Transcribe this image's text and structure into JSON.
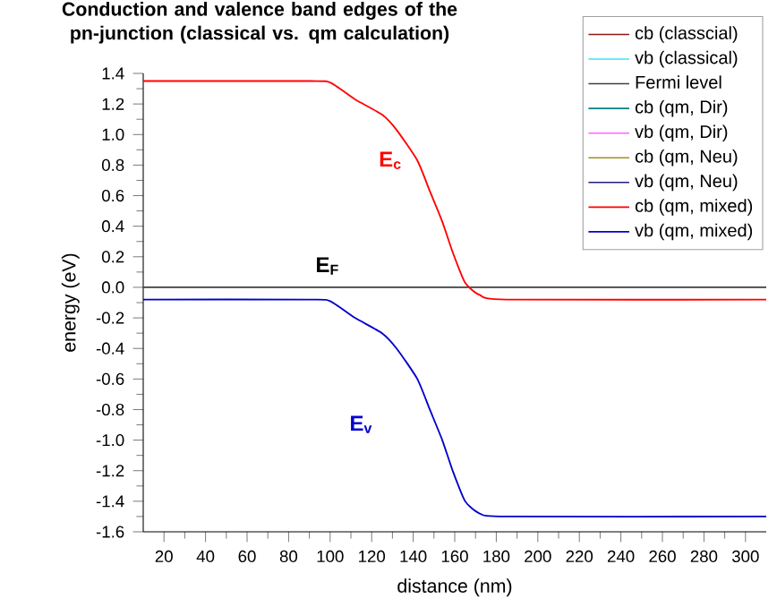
{
  "chart_data": {
    "type": "line",
    "title": "Conduction and valence band edges of the pn-junction (classical vs. qm calculation)",
    "xlabel": "distance (nm)",
    "ylabel": "energy (eV)",
    "x": [
      10,
      90,
      100,
      112,
      125,
      132,
      142,
      148,
      154,
      159,
      165,
      172,
      185,
      310
    ],
    "series": [
      {
        "name": "cb (classcial)",
        "color": "#8b1a1a",
        "values": [
          null,
          null,
          null,
          null,
          null,
          null,
          null,
          null,
          null,
          null,
          null,
          null,
          null,
          null
        ]
      },
      {
        "name": "vb (classical)",
        "color": "#40e0f0",
        "values": [
          null,
          null,
          null,
          null,
          null,
          null,
          null,
          null,
          null,
          null,
          null,
          null,
          null,
          null
        ]
      },
      {
        "name": "Fermi level",
        "color": "#404040",
        "values": [
          0,
          0,
          0,
          0,
          0,
          0,
          0,
          0,
          0,
          0,
          0,
          0,
          0,
          0
        ]
      },
      {
        "name": "cb (qm, Dir)",
        "color": "#008080",
        "values": [
          null,
          null,
          null,
          null,
          null,
          null,
          null,
          null,
          null,
          null,
          null,
          null,
          null,
          null
        ]
      },
      {
        "name": "vb (qm, Dir)",
        "color": "#ff66ff",
        "values": [
          null,
          null,
          null,
          null,
          null,
          null,
          null,
          null,
          null,
          null,
          null,
          null,
          null,
          null
        ]
      },
      {
        "name": "cb (qm, Neu)",
        "color": "#a09020",
        "values": [
          null,
          null,
          null,
          null,
          null,
          null,
          null,
          null,
          null,
          null,
          null,
          null,
          null,
          null
        ]
      },
      {
        "name": "vb (qm, Neu)",
        "color": "#202080",
        "values": [
          null,
          null,
          null,
          null,
          null,
          null,
          null,
          null,
          null,
          null,
          null,
          null,
          null,
          null
        ]
      },
      {
        "name": "cb (qm, mixed)",
        "color": "#ff0000",
        "values": [
          1.35,
          1.35,
          1.34,
          1.23,
          1.13,
          1.03,
          0.83,
          0.63,
          0.43,
          0.23,
          0.03,
          -0.05,
          -0.08,
          -0.08
        ]
      },
      {
        "name": "vb (qm, mixed)",
        "color": "#0000cc",
        "values": [
          -0.08,
          -0.08,
          -0.09,
          -0.2,
          -0.3,
          -0.4,
          -0.6,
          -0.8,
          -1.0,
          -1.2,
          -1.4,
          -1.48,
          -1.5,
          -1.5
        ]
      }
    ],
    "xlim": [
      10,
      310
    ],
    "xticks": [
      20,
      40,
      60,
      80,
      100,
      120,
      140,
      160,
      180,
      200,
      220,
      240,
      260,
      280,
      300
    ],
    "ylim": [
      -1.6,
      1.4
    ],
    "yticks": [
      {
        "value": -1.6,
        "label": "-1.6"
      },
      {
        "value": -1.4,
        "label": "-1.4"
      },
      {
        "value": -1.2,
        "label": "-1.2"
      },
      {
        "value": -1.0,
        "label": "-1.0"
      },
      {
        "value": -0.8,
        "label": "-0.8"
      },
      {
        "value": -0.6,
        "label": "-0.6"
      },
      {
        "value": -0.4,
        "label": "-0.4"
      },
      {
        "value": -0.2,
        "label": "-0.2"
      },
      {
        "value": 0.0,
        "label": "0.0"
      },
      {
        "value": 0.2,
        "label": "0.2"
      },
      {
        "value": 0.4,
        "label": "0.4"
      },
      {
        "value": 0.6,
        "label": "0.6"
      },
      {
        "value": 0.8,
        "label": "0.8"
      },
      {
        "value": 1.0,
        "label": "1.0"
      },
      {
        "value": 1.2,
        "label": "1.2"
      },
      {
        "value": 1.4,
        "label": "1.4"
      }
    ],
    "annotations": [
      "E$_{c}$",
      "E$_{F}$",
      "E$_{v}$"
    ],
    "legend": "top right",
    "grid": false,
    "marker": "none",
    "line_style": "solid"
  }
}
